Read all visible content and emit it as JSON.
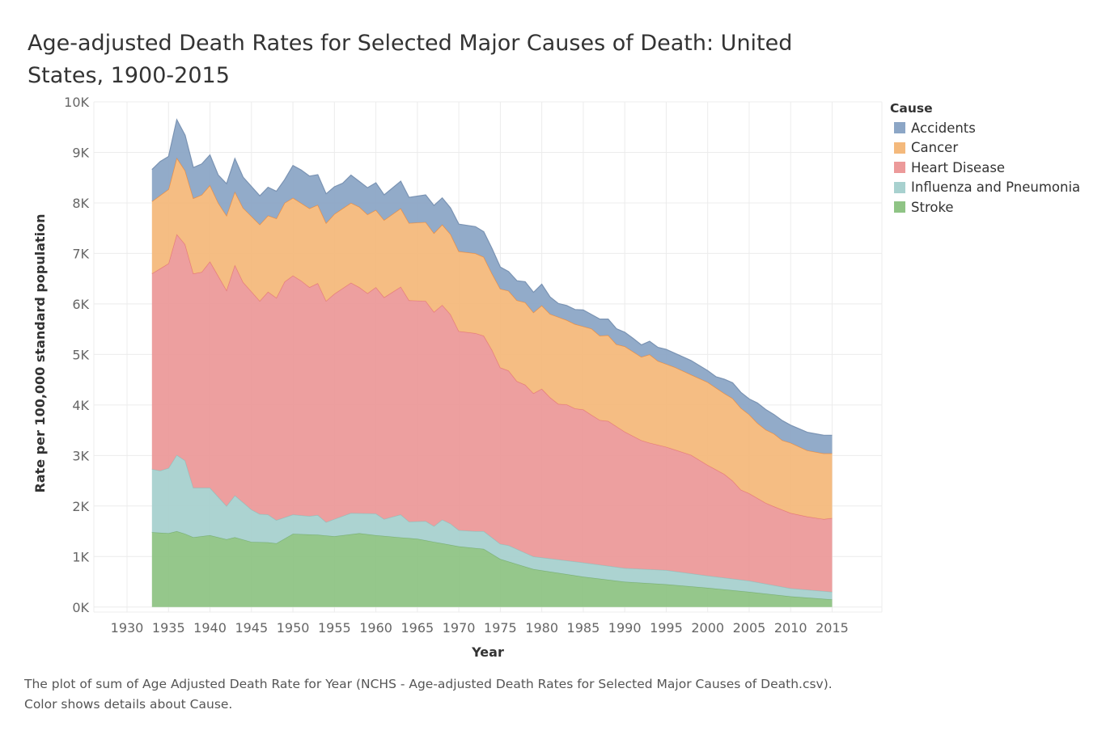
{
  "chart_data": {
    "type": "area",
    "stacked": true,
    "title": "Age-adjusted Death Rates for Selected Major Causes of Death: United States, 1900-2015",
    "xlabel": "Year",
    "ylabel": "Rate per 100,000 standard population",
    "xlim": [
      1926,
      2021
    ],
    "ylim": [
      -100,
      10000
    ],
    "x_ticks": [
      1930,
      1935,
      1940,
      1945,
      1950,
      1955,
      1960,
      1965,
      1970,
      1975,
      1980,
      1985,
      1990,
      1995,
      2000,
      2005,
      2010,
      2015
    ],
    "y_ticks": [
      0,
      1000,
      2000,
      3000,
      4000,
      5000,
      6000,
      7000,
      8000,
      9000,
      10000
    ],
    "y_tick_labels": [
      "0K",
      "1K",
      "2K",
      "3K",
      "4K",
      "5K",
      "6K",
      "7K",
      "8K",
      "9K",
      "10K"
    ],
    "grid": true,
    "legend_title": "Cause",
    "legend_position": "right",
    "stack_note": "series listed bottom-to-top; values are cumulative stack tops read from the chart",
    "series": [
      {
        "name": "Stroke",
        "color": "#8fc485",
        "points": [
          [
            1933,
            1480
          ],
          [
            1935,
            1460
          ],
          [
            1936,
            1500
          ],
          [
            1937,
            1450
          ],
          [
            1938,
            1380
          ],
          [
            1940,
            1420
          ],
          [
            1942,
            1340
          ],
          [
            1943,
            1380
          ],
          [
            1945,
            1290
          ],
          [
            1947,
            1280
          ],
          [
            1948,
            1260
          ],
          [
            1950,
            1450
          ],
          [
            1953,
            1430
          ],
          [
            1955,
            1400
          ],
          [
            1958,
            1460
          ],
          [
            1960,
            1420
          ],
          [
            1965,
            1350
          ],
          [
            1970,
            1200
          ],
          [
            1973,
            1150
          ],
          [
            1975,
            950
          ],
          [
            1979,
            750
          ],
          [
            1985,
            600
          ],
          [
            1990,
            500
          ],
          [
            1995,
            450
          ],
          [
            2000,
            380
          ],
          [
            2005,
            300
          ],
          [
            2010,
            210
          ],
          [
            2015,
            150
          ]
        ]
      },
      {
        "name": "Influenza and Pneumonia",
        "color": "#a8d1cf",
        "points": [
          [
            1933,
            2730
          ],
          [
            1934,
            2700
          ],
          [
            1935,
            2750
          ],
          [
            1936,
            3010
          ],
          [
            1937,
            2900
          ],
          [
            1938,
            2360
          ],
          [
            1940,
            2360
          ],
          [
            1942,
            2000
          ],
          [
            1943,
            2210
          ],
          [
            1945,
            1930
          ],
          [
            1946,
            1840
          ],
          [
            1947,
            1830
          ],
          [
            1948,
            1720
          ],
          [
            1950,
            1830
          ],
          [
            1952,
            1800
          ],
          [
            1953,
            1820
          ],
          [
            1954,
            1680
          ],
          [
            1955,
            1740
          ],
          [
            1957,
            1860
          ],
          [
            1960,
            1850
          ],
          [
            1961,
            1740
          ],
          [
            1963,
            1830
          ],
          [
            1964,
            1690
          ],
          [
            1966,
            1700
          ],
          [
            1967,
            1600
          ],
          [
            1968,
            1730
          ],
          [
            1969,
            1650
          ],
          [
            1970,
            1520
          ],
          [
            1972,
            1500
          ],
          [
            1973,
            1500
          ],
          [
            1975,
            1250
          ],
          [
            1976,
            1220
          ],
          [
            1979,
            1000
          ],
          [
            1985,
            880
          ],
          [
            1990,
            770
          ],
          [
            1995,
            730
          ],
          [
            2000,
            620
          ],
          [
            2005,
            520
          ],
          [
            2010,
            370
          ],
          [
            2015,
            300
          ]
        ]
      },
      {
        "name": "Heart Disease",
        "color": "#ec9a9a",
        "points": [
          [
            1933,
            6600
          ],
          [
            1935,
            6800
          ],
          [
            1936,
            7380
          ],
          [
            1937,
            7180
          ],
          [
            1938,
            6600
          ],
          [
            1939,
            6630
          ],
          [
            1940,
            6840
          ],
          [
            1942,
            6270
          ],
          [
            1943,
            6770
          ],
          [
            1944,
            6430
          ],
          [
            1946,
            6060
          ],
          [
            1947,
            6240
          ],
          [
            1948,
            6120
          ],
          [
            1949,
            6440
          ],
          [
            1950,
            6560
          ],
          [
            1951,
            6460
          ],
          [
            1952,
            6330
          ],
          [
            1953,
            6410
          ],
          [
            1954,
            6060
          ],
          [
            1955,
            6200
          ],
          [
            1957,
            6420
          ],
          [
            1958,
            6330
          ],
          [
            1959,
            6210
          ],
          [
            1960,
            6330
          ],
          [
            1961,
            6130
          ],
          [
            1963,
            6340
          ],
          [
            1964,
            6070
          ],
          [
            1966,
            6060
          ],
          [
            1967,
            5840
          ],
          [
            1968,
            5980
          ],
          [
            1969,
            5790
          ],
          [
            1970,
            5460
          ],
          [
            1972,
            5420
          ],
          [
            1973,
            5370
          ],
          [
            1974,
            5090
          ],
          [
            1975,
            4740
          ],
          [
            1976,
            4680
          ],
          [
            1977,
            4470
          ],
          [
            1978,
            4400
          ],
          [
            1979,
            4230
          ],
          [
            1980,
            4320
          ],
          [
            1981,
            4150
          ],
          [
            1982,
            4020
          ],
          [
            1983,
            4010
          ],
          [
            1984,
            3930
          ],
          [
            1985,
            3910
          ],
          [
            1986,
            3800
          ],
          [
            1987,
            3700
          ],
          [
            1988,
            3680
          ],
          [
            1990,
            3470
          ],
          [
            1992,
            3300
          ],
          [
            1993,
            3250
          ],
          [
            1995,
            3170
          ],
          [
            1998,
            3010
          ],
          [
            2000,
            2810
          ],
          [
            2002,
            2630
          ],
          [
            2003,
            2500
          ],
          [
            2004,
            2320
          ],
          [
            2005,
            2250
          ],
          [
            2007,
            2060
          ],
          [
            2008,
            1990
          ],
          [
            2010,
            1860
          ],
          [
            2012,
            1790
          ],
          [
            2014,
            1740
          ],
          [
            2015,
            1760
          ]
        ]
      },
      {
        "name": "Cancer",
        "color": "#f4b97c",
        "points": [
          [
            1933,
            8030
          ],
          [
            1935,
            8270
          ],
          [
            1936,
            8890
          ],
          [
            1937,
            8640
          ],
          [
            1938,
            8090
          ],
          [
            1939,
            8160
          ],
          [
            1940,
            8350
          ],
          [
            1941,
            8000
          ],
          [
            1942,
            7750
          ],
          [
            1943,
            8220
          ],
          [
            1944,
            7900
          ],
          [
            1946,
            7570
          ],
          [
            1947,
            7750
          ],
          [
            1948,
            7690
          ],
          [
            1949,
            8000
          ],
          [
            1950,
            8100
          ],
          [
            1952,
            7890
          ],
          [
            1953,
            7960
          ],
          [
            1954,
            7600
          ],
          [
            1955,
            7780
          ],
          [
            1957,
            8000
          ],
          [
            1958,
            7920
          ],
          [
            1959,
            7770
          ],
          [
            1960,
            7860
          ],
          [
            1961,
            7660
          ],
          [
            1963,
            7890
          ],
          [
            1964,
            7600
          ],
          [
            1966,
            7620
          ],
          [
            1967,
            7400
          ],
          [
            1968,
            7570
          ],
          [
            1969,
            7380
          ],
          [
            1970,
            7040
          ],
          [
            1972,
            7000
          ],
          [
            1973,
            6930
          ],
          [
            1974,
            6600
          ],
          [
            1975,
            6300
          ],
          [
            1976,
            6260
          ],
          [
            1977,
            6070
          ],
          [
            1978,
            6030
          ],
          [
            1979,
            5830
          ],
          [
            1980,
            5970
          ],
          [
            1981,
            5800
          ],
          [
            1983,
            5680
          ],
          [
            1984,
            5600
          ],
          [
            1986,
            5510
          ],
          [
            1987,
            5370
          ],
          [
            1988,
            5380
          ],
          [
            1989,
            5200
          ],
          [
            1990,
            5160
          ],
          [
            1992,
            4950
          ],
          [
            1993,
            5000
          ],
          [
            1994,
            4870
          ],
          [
            1996,
            4750
          ],
          [
            1998,
            4600
          ],
          [
            2000,
            4450
          ],
          [
            2001,
            4340
          ],
          [
            2002,
            4230
          ],
          [
            2003,
            4130
          ],
          [
            2004,
            3940
          ],
          [
            2005,
            3810
          ],
          [
            2006,
            3640
          ],
          [
            2007,
            3510
          ],
          [
            2008,
            3430
          ],
          [
            2009,
            3300
          ],
          [
            2010,
            3250
          ],
          [
            2012,
            3100
          ],
          [
            2014,
            3040
          ],
          [
            2015,
            3040
          ]
        ]
      },
      {
        "name": "Accidents",
        "color": "#8ca6c6",
        "points": [
          [
            1933,
            8660
          ],
          [
            1934,
            8820
          ],
          [
            1935,
            8920
          ],
          [
            1936,
            9650
          ],
          [
            1937,
            9340
          ],
          [
            1938,
            8700
          ],
          [
            1939,
            8770
          ],
          [
            1940,
            8950
          ],
          [
            1941,
            8550
          ],
          [
            1942,
            8380
          ],
          [
            1943,
            8880
          ],
          [
            1944,
            8510
          ],
          [
            1946,
            8140
          ],
          [
            1947,
            8310
          ],
          [
            1948,
            8230
          ],
          [
            1949,
            8460
          ],
          [
            1950,
            8740
          ],
          [
            1951,
            8650
          ],
          [
            1952,
            8530
          ],
          [
            1953,
            8560
          ],
          [
            1954,
            8180
          ],
          [
            1955,
            8320
          ],
          [
            1956,
            8390
          ],
          [
            1957,
            8550
          ],
          [
            1959,
            8300
          ],
          [
            1960,
            8400
          ],
          [
            1961,
            8160
          ],
          [
            1963,
            8430
          ],
          [
            1964,
            8110
          ],
          [
            1966,
            8160
          ],
          [
            1967,
            7950
          ],
          [
            1968,
            8100
          ],
          [
            1969,
            7900
          ],
          [
            1970,
            7580
          ],
          [
            1972,
            7530
          ],
          [
            1973,
            7430
          ],
          [
            1974,
            7100
          ],
          [
            1975,
            6730
          ],
          [
            1976,
            6640
          ],
          [
            1977,
            6460
          ],
          [
            1978,
            6440
          ],
          [
            1979,
            6230
          ],
          [
            1980,
            6390
          ],
          [
            1981,
            6140
          ],
          [
            1982,
            6010
          ],
          [
            1983,
            5970
          ],
          [
            1984,
            5890
          ],
          [
            1985,
            5880
          ],
          [
            1986,
            5790
          ],
          [
            1987,
            5700
          ],
          [
            1988,
            5700
          ],
          [
            1989,
            5510
          ],
          [
            1990,
            5440
          ],
          [
            1991,
            5320
          ],
          [
            1992,
            5190
          ],
          [
            1993,
            5260
          ],
          [
            1994,
            5140
          ],
          [
            1995,
            5100
          ],
          [
            1998,
            4880
          ],
          [
            2000,
            4680
          ],
          [
            2001,
            4560
          ],
          [
            2002,
            4510
          ],
          [
            2003,
            4440
          ],
          [
            2004,
            4250
          ],
          [
            2005,
            4120
          ],
          [
            2006,
            4040
          ],
          [
            2007,
            3910
          ],
          [
            2008,
            3810
          ],
          [
            2009,
            3690
          ],
          [
            2010,
            3600
          ],
          [
            2011,
            3530
          ],
          [
            2012,
            3460
          ],
          [
            2014,
            3400
          ],
          [
            2015,
            3400
          ]
        ]
      }
    ]
  },
  "caption": {
    "line1": "The plot of sum of Age Adjusted Death Rate for Year (NCHS - Age-adjusted Death Rates for Selected Major Causes of Death.csv).",
    "line2": "Color shows details about Cause."
  },
  "colors": {
    "gridline": "#ececec",
    "axis_text": "#666666",
    "line_stroke": {
      "Stroke": "#7bb173",
      "Influenza and Pneumonia": "#94c2bf",
      "Heart Disease": "#e4787c",
      "Cancer": "#f28e3c",
      "Accidents": "#7a93b3"
    }
  },
  "legend_order": [
    "Accidents",
    "Cancer",
    "Heart Disease",
    "Influenza and Pneumonia",
    "Stroke"
  ]
}
